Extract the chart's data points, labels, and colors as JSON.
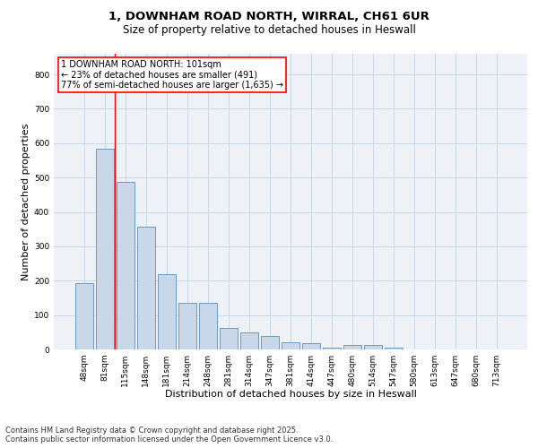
{
  "title_line1": "1, DOWNHAM ROAD NORTH, WIRRAL, CH61 6UR",
  "title_line2": "Size of property relative to detached houses in Heswall",
  "xlabel": "Distribution of detached houses by size in Heswall",
  "ylabel": "Number of detached properties",
  "categories": [
    "48sqm",
    "81sqm",
    "115sqm",
    "148sqm",
    "181sqm",
    "214sqm",
    "248sqm",
    "281sqm",
    "314sqm",
    "347sqm",
    "381sqm",
    "414sqm",
    "447sqm",
    "480sqm",
    "514sqm",
    "547sqm",
    "580sqm",
    "613sqm",
    "647sqm",
    "680sqm",
    "713sqm"
  ],
  "values": [
    193,
    583,
    487,
    358,
    219,
    135,
    135,
    63,
    50,
    40,
    20,
    18,
    5,
    13,
    13,
    5,
    0,
    0,
    0,
    0,
    0
  ],
  "bar_color": "#c8d8e8",
  "bar_edge_color": "#5b8db8",
  "red_line_x": 1.5,
  "annotation_box_text": "1 DOWNHAM ROAD NORTH: 101sqm\n← 23% of detached houses are smaller (491)\n77% of semi-detached houses are larger (1,635) →",
  "ylim": [
    0,
    860
  ],
  "yticks": [
    0,
    100,
    200,
    300,
    400,
    500,
    600,
    700,
    800
  ],
  "grid_color": "#c8d8e8",
  "background_color": "#eef2f7",
  "footer_line1": "Contains HM Land Registry data © Crown copyright and database right 2025.",
  "footer_line2": "Contains public sector information licensed under the Open Government Licence v3.0.",
  "title_fontsize": 9.5,
  "subtitle_fontsize": 8.5,
  "xlabel_fontsize": 8,
  "ylabel_fontsize": 8,
  "tick_fontsize": 6.5,
  "annotation_fontsize": 7,
  "footer_fontsize": 6
}
